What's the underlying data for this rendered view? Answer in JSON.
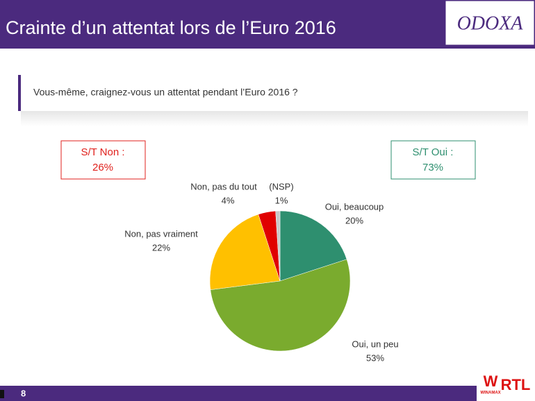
{
  "header": {
    "title": "Crainte d’un attentat lors de l’Euro 2016",
    "logo": "ODOXA"
  },
  "question": "Vous-même, craignez-vous un attentat pendant l’Euro 2016 ?",
  "summaries": [
    {
      "label": "S/T Non :",
      "value": "26%",
      "color": "#e0201c"
    },
    {
      "label": "S/T Oui :",
      "value": "73%",
      "color": "#2e8f6f"
    }
  ],
  "chart_data": {
    "type": "pie",
    "categories": [
      "Oui, beaucoup",
      "Oui, un peu",
      "Non, pas vraiment",
      "Non, pas du tout",
      "(NSP)"
    ],
    "values": [
      20,
      53,
      22,
      4,
      1
    ],
    "value_labels": [
      "20%",
      "53%",
      "22%",
      "4%",
      "1%"
    ],
    "colors": [
      "#2e8f6f",
      "#7aab2e",
      "#ffc000",
      "#e00000",
      "#c8c8c8"
    ]
  },
  "footer": {
    "page": "8",
    "sponsor": "WINAMAX",
    "brand": "RTL"
  }
}
